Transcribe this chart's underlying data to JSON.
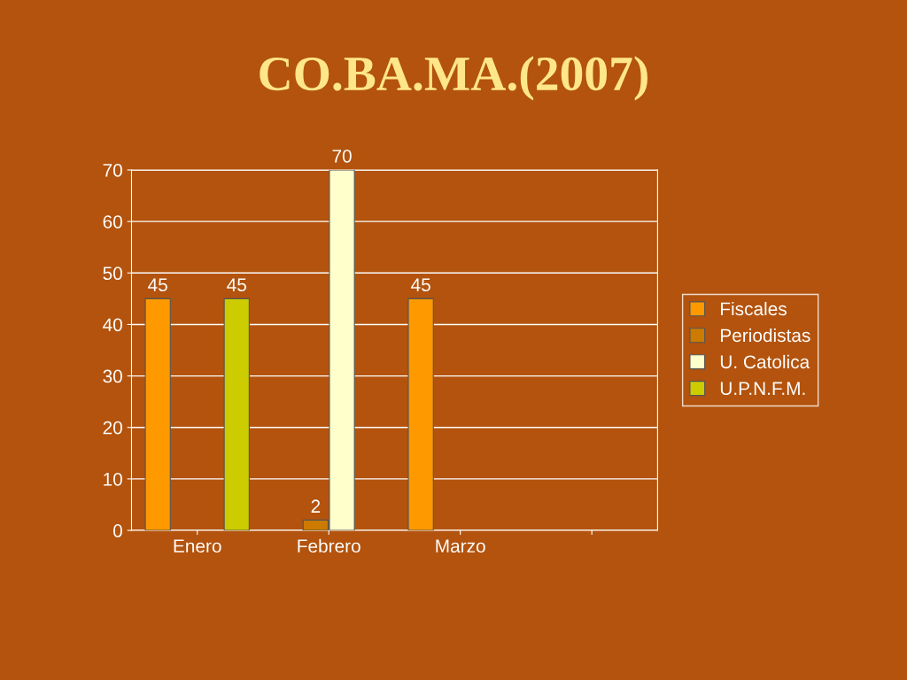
{
  "chart_data": {
    "type": "bar",
    "title": "CO.BA.MA.(2007)",
    "categories": [
      "Enero",
      "Febrero",
      "Marzo",
      null
    ],
    "series": [
      {
        "name": "Fiscales",
        "color": "#ff9900",
        "values": [
          45,
          null,
          45,
          null
        ]
      },
      {
        "name": "Periodistas",
        "color": "#cc7a00",
        "values": [
          null,
          2,
          null,
          null
        ]
      },
      {
        "name": "U. Catolica",
        "color": "#ffffcc",
        "values": [
          null,
          70,
          null,
          null
        ]
      },
      {
        "name": "U.P.N.F.M.",
        "color": "#cccc00",
        "values": [
          45,
          null,
          null,
          null
        ]
      }
    ],
    "ylim": [
      0,
      70
    ],
    "yticks": [
      0,
      10,
      20,
      30,
      40,
      50,
      60,
      70
    ],
    "grid": "y",
    "legend": "right",
    "data_labels": true
  }
}
